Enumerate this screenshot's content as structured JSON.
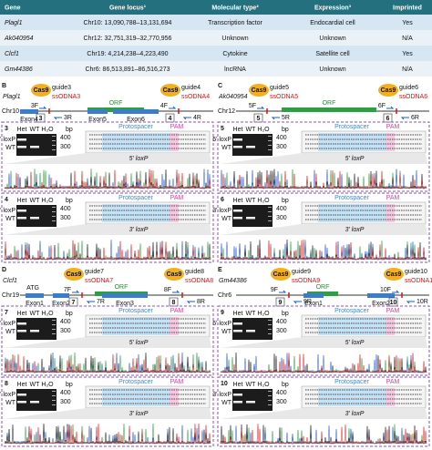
{
  "table": {
    "header": [
      "Gene",
      "Gene locus¹",
      "Molecular type²",
      "Expression³",
      "Imprinted"
    ],
    "rows": [
      [
        "Plagl1",
        "Chr10: 13,090,788–13,131,694",
        "Transcription factor",
        "Endocardial cell",
        "Yes"
      ],
      [
        "Ak040954",
        "Chr12: 32,751,319–32,770,956",
        "Unknown",
        "Unknown",
        "N/A"
      ],
      [
        "Clcf1",
        "Chr19: 4,214,238–4,223,490",
        "Cytokine",
        "Satellite cell",
        "Yes"
      ],
      [
        "Gm44386",
        "Chr6: 86,513,891–86,516,273",
        "lncRNA",
        "Unknown",
        "N/A"
      ]
    ]
  },
  "panels": [
    {
      "letter": "B",
      "gene": "Plagl1",
      "chr": "Chr10",
      "orf": "ORF",
      "exons": [
        "Exon4",
        "Exon5",
        "Exon6"
      ],
      "sites": [
        {
          "cas9": "Cas9",
          "guide": "guide3",
          "ssodna": "ssODNA3",
          "num": "3",
          "f": "3F",
          "r": "3R"
        },
        {
          "cas9": "Cas9",
          "guide": "guide4",
          "ssodna": "ssODNA4",
          "num": "4",
          "f": "4F",
          "r": "4R"
        }
      ],
      "gels": [
        {
          "num": "3",
          "lanes": [
            "Het",
            "WT",
            "H₂O"
          ],
          "bp": "bp",
          "sizes": [
            "400",
            "300"
          ],
          "bands": [
            "5' loxP",
            "WT"
          ],
          "protospacer": "Protospacer",
          "pam": "PAM",
          "site": "5' loxP"
        },
        {
          "num": "4",
          "lanes": [
            "Het",
            "WT",
            "H₂O"
          ],
          "bp": "bp",
          "sizes": [
            "400",
            "300"
          ],
          "bands": [
            "3' loxP",
            "WT"
          ],
          "protospacer": "Protospacer",
          "pam": "PAM",
          "site": "3' loxP"
        }
      ]
    },
    {
      "letter": "C",
      "gene": "Ak040954",
      "chr": "Chr12",
      "orf": "ORF",
      "exons": [],
      "sites": [
        {
          "cas9": "Cas9",
          "guide": "guide5",
          "ssodna": "ssODNA5",
          "num": "5",
          "f": "5F",
          "r": "5R"
        },
        {
          "cas9": "Cas9",
          "guide": "guide6",
          "ssodna": "ssODNA6",
          "num": "6",
          "f": "6F",
          "r": "6R"
        }
      ],
      "gels": [
        {
          "num": "5",
          "lanes": [
            "Het",
            "WT",
            "H₂O"
          ],
          "bp": "bp",
          "sizes": [
            "400",
            "300"
          ],
          "bands": [
            "5' loxP",
            "WT"
          ],
          "protospacer": "Protospacer",
          "pam": "PAM",
          "site": "5' loxP"
        },
        {
          "num": "6",
          "lanes": [
            "Het",
            "WT",
            "H₂O"
          ],
          "bp": "bp",
          "sizes": [
            "400",
            "300"
          ],
          "bands": [
            "3' loxP",
            "WT"
          ],
          "protospacer": "Protospacer",
          "pam": "PAM",
          "site": "3' loxP"
        }
      ]
    },
    {
      "letter": "D",
      "gene": "Clcf1",
      "chr": "Chr19",
      "orf": "ORF",
      "start_codon": "ATG",
      "exons": [
        "Exon1",
        "Exon2",
        "Exon3"
      ],
      "sites": [
        {
          "cas9": "Cas9",
          "guide": "guide7",
          "ssodna": "ssODNA7",
          "num": "7",
          "f": "7F",
          "r": "7R"
        },
        {
          "cas9": "Cas9",
          "guide": "guide8",
          "ssodna": "ssODNA8",
          "num": "8",
          "f": "8F",
          "r": "8R"
        }
      ],
      "gels": [
        {
          "num": "7",
          "lanes": [
            "Het",
            "WT",
            "H₂O"
          ],
          "bp": "bp",
          "sizes": [
            "400",
            "300"
          ],
          "bands": [
            "5' loxP",
            "WT"
          ],
          "protospacer": "Protospacer",
          "pam": "PAM",
          "site": "5' loxP"
        },
        {
          "num": "8",
          "lanes": [
            "Het",
            "WT",
            "H₂O"
          ],
          "bp": "bp",
          "sizes": [
            "400",
            "300"
          ],
          "bands": [
            "3' loxP",
            "WT"
          ],
          "protospacer": "Protospacer",
          "pam": "PAM",
          "site": "3' loxP"
        }
      ]
    },
    {
      "letter": "E",
      "gene": "Gm44386",
      "chr": "Chr6",
      "orf": "ORF",
      "exons": [
        "Exon1",
        "Exon2"
      ],
      "sites": [
        {
          "cas9": "Cas9",
          "guide": "guide9",
          "ssodna": "ssODNA9",
          "num": "9",
          "f": "9F",
          "r": "9R"
        },
        {
          "cas9": "Cas9",
          "guide": "guide10",
          "ssodna": "ssODNA10",
          "num": "10",
          "f": "10F",
          "r": "10R"
        }
      ],
      "gels": [
        {
          "num": "9",
          "lanes": [
            "Het",
            "WT",
            "H₂O"
          ],
          "bp": "bp",
          "sizes": [
            "400",
            "300"
          ],
          "bands": [
            "5' loxP",
            "WT"
          ],
          "protospacer": "Protospacer",
          "pam": "PAM",
          "site": "5' loxP"
        },
        {
          "num": "10",
          "lanes": [
            "Het",
            "WT",
            "H₂O"
          ],
          "bp": "bp",
          "sizes": [
            "400",
            "300"
          ],
          "bands": [
            "3' loxP",
            "WT"
          ],
          "protospacer": "Protospacer",
          "pam": "PAM",
          "site": "3' loxP"
        }
      ]
    }
  ]
}
